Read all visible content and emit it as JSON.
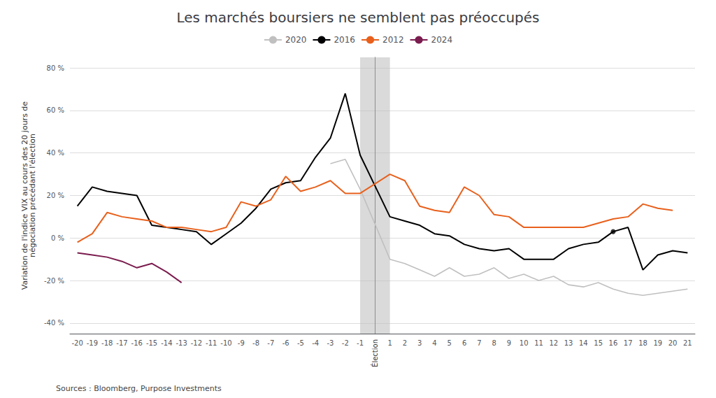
{
  "chart_data": {
    "type": "line",
    "title": "Les marchés boursiers ne semblent pas préoccupés",
    "ylabel": "Variation de l'indice VIX au cours des 20 jours de\nnégociation précédant l'élection",
    "source": "Sources : Bloomberg, Purpose Investments",
    "x": [
      -20,
      -19,
      -18,
      -17,
      -16,
      -15,
      -14,
      -13,
      -12,
      -11,
      -10,
      -9,
      -8,
      -7,
      -6,
      -5,
      -4,
      -3,
      -2,
      -1,
      1,
      2,
      3,
      4,
      5,
      6,
      7,
      8,
      9,
      10,
      11,
      12,
      13,
      14,
      15,
      16,
      17,
      18,
      19,
      20,
      21
    ],
    "xlim": [
      -20.5,
      21.5
    ],
    "xticks": [
      -20,
      -19,
      -18,
      -17,
      -16,
      -15,
      -14,
      -13,
      -12,
      -11,
      -10,
      -9,
      -8,
      -7,
      -6,
      -5,
      -4,
      -3,
      -2,
      -1,
      {
        "value": 0,
        "label": "Élection"
      },
      1,
      2,
      3,
      4,
      5,
      6,
      7,
      8,
      9,
      10,
      11,
      12,
      13,
      14,
      15,
      16,
      17,
      18,
      19,
      20,
      21
    ],
    "ylim": [
      -45,
      85
    ],
    "yticks": [
      {
        "value": -40,
        "label": "-40 %"
      },
      {
        "value": -20,
        "label": "-20 %"
      },
      {
        "value": 0,
        "label": "0 %"
      },
      {
        "value": 20,
        "label": "20 %"
      },
      {
        "value": 40,
        "label": "40 %"
      },
      {
        "value": 60,
        "label": "60 %"
      },
      {
        "value": 80,
        "label": "80 %"
      }
    ],
    "grid": true,
    "legend": "top",
    "shaded_x": [
      -1.0,
      1.0
    ],
    "marked_point": {
      "x": 16,
      "y": 3
    },
    "series": [
      {
        "name": "2020",
        "color": "#c0c0c0",
        "values": [
          null,
          null,
          null,
          null,
          null,
          null,
          null,
          null,
          null,
          null,
          null,
          null,
          null,
          null,
          null,
          null,
          null,
          35,
          37,
          23,
          -10,
          -12,
          -15,
          -18,
          -14,
          -18,
          -17,
          -14,
          -19,
          -17,
          -20,
          -18,
          -22,
          -23,
          -21,
          -24,
          -26,
          -27,
          -26,
          -25,
          -24
        ]
      },
      {
        "name": "2016",
        "color": "#000000",
        "values": [
          15,
          24,
          22,
          21,
          20,
          6,
          5,
          4,
          3,
          -3,
          2,
          7,
          14,
          23,
          26,
          27,
          38,
          47,
          68,
          39,
          10,
          8,
          6,
          2,
          1,
          -3,
          -5,
          -6,
          -5,
          -10,
          -10,
          -10,
          -5,
          -3,
          -2,
          3,
          5,
          -15,
          -8,
          -6,
          -7
        ]
      },
      {
        "name": "2012",
        "color": "#E8601C",
        "values": [
          -2,
          2,
          12,
          10,
          9,
          8,
          5,
          5,
          4,
          3,
          5,
          17,
          15,
          18,
          29,
          22,
          24,
          27,
          21,
          21,
          30,
          27,
          15,
          13,
          12,
          24,
          20,
          11,
          10,
          5,
          5,
          5,
          5,
          5,
          7,
          9,
          10,
          16,
          14,
          13,
          null
        ]
      },
      {
        "name": "2024",
        "color": "#7B1C4E",
        "values": [
          -7,
          -8,
          -9,
          -11,
          -14,
          -12,
          -16,
          -21,
          null,
          null,
          null,
          null,
          null,
          null,
          null,
          null,
          null,
          null,
          null,
          null,
          null,
          null,
          null,
          null,
          null,
          null,
          null,
          null,
          null,
          null,
          null,
          null,
          null,
          null,
          null,
          null,
          null,
          null,
          null,
          null,
          null
        ]
      }
    ]
  }
}
